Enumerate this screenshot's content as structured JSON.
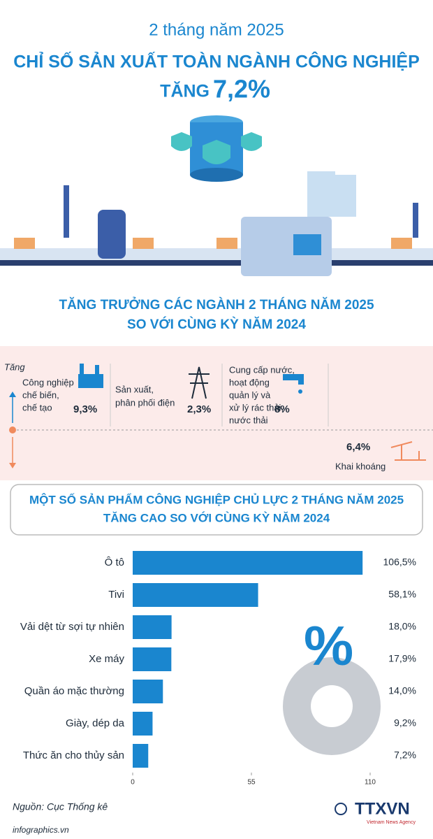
{
  "header": {
    "subtitle": "2 tháng năm 2025",
    "title": "CHỈ SỐ SẢN XUẤT TOÀN NGÀNH CÔNG NGHIỆP",
    "increase_prefix": "TĂNG",
    "increase_value": "7,2%"
  },
  "growth": {
    "title_lines": [
      "TĂNG TRƯỞNG CÁC NGÀNH 2 THÁNG NĂM 2025",
      "SO VỚI CÙNG KỲ NĂM 2024"
    ],
    "axis_label": "Tăng",
    "sectors": [
      {
        "name_lines": [
          "Công nghiệp",
          "chế biến,",
          "chế tạo"
        ],
        "value": "9,3%"
      },
      {
        "name_lines": [
          "Sản xuất,",
          "phân phối điện"
        ],
        "value": "2,3%"
      },
      {
        "name_lines": [
          "Cung cấp nước,",
          "hoạt động",
          "quản lý và",
          "xử lý rác thải,",
          "nước thải"
        ],
        "value": "8%"
      },
      {
        "name_lines": [
          "Khai khoáng"
        ],
        "value": "6,4%"
      }
    ]
  },
  "chart_data": {
    "type": "bar",
    "orientation": "horizontal",
    "title_lines": [
      "MỘT SỐ SẢN PHẨM CÔNG NGHIỆP CHỦ LỰC 2 THÁNG NĂM 2025",
      "TĂNG CAO SO VỚI CÙNG KỲ NĂM 2024"
    ],
    "categories": [
      "Ô tô",
      "Tivi",
      "Vải dệt từ sợi tự nhiên",
      "Xe máy",
      "Quần áo mặc thường",
      "Giày, dép da",
      "Thức ăn cho thủy sản"
    ],
    "values": [
      106.5,
      58.1,
      18.0,
      17.9,
      14.0,
      9.2,
      7.2
    ],
    "value_labels": [
      "106,5%",
      "58,1%",
      "18,0%",
      "17,9%",
      "14,0%",
      "9,2%",
      "7,2%"
    ],
    "xlim": [
      0,
      110
    ],
    "xticks": [
      0,
      55,
      110
    ],
    "color": "#1a86cf"
  },
  "footer": {
    "source": "Nguồn: Cục Thống kê",
    "site": "infographics.vn",
    "logo": "TTXVN",
    "logo_sub": "Vietnam News Agency"
  }
}
